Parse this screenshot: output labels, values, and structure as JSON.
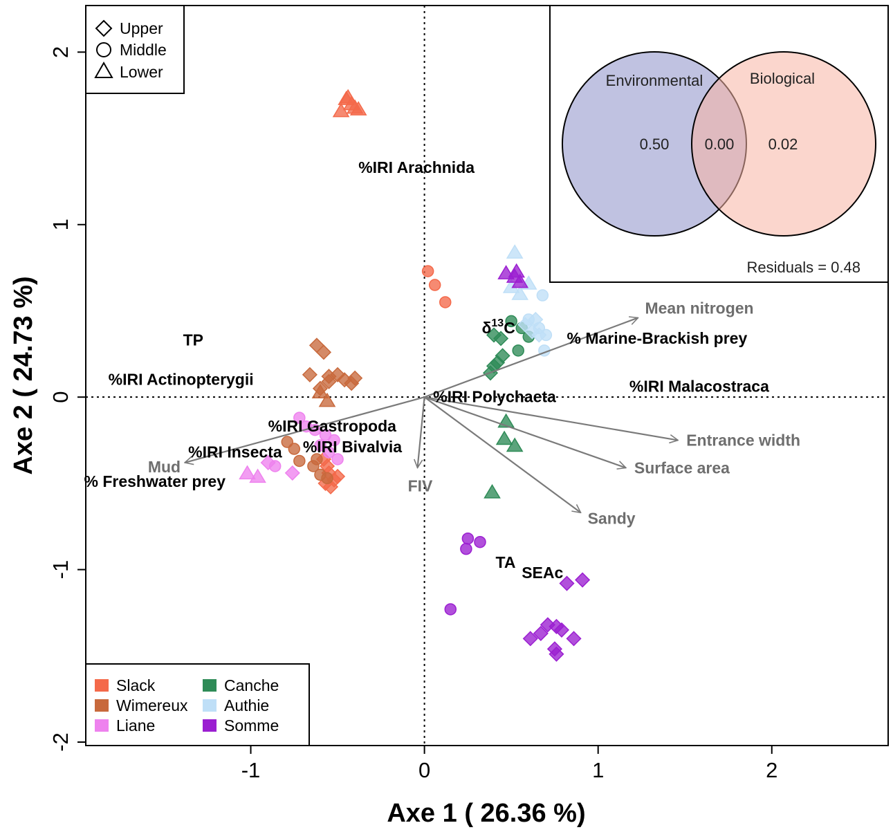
{
  "colors": {
    "Slack": "#f4694a",
    "Wimereux": "#c8693c",
    "Liane": "#ee82ee",
    "Canche": "#2e8b57",
    "Authie": "#bfdff7",
    "Somme": "#9b1fd1",
    "arrow": "#7a7a7a",
    "venn_left": "#8c8fc8",
    "venn_right": "#f8b4a4"
  },
  "chart_data": {
    "type": "scatter",
    "xlabel": "Axe 1 ( 26.36 %)",
    "ylabel": "Axe 2 ( 24.73 %)",
    "xlim": [
      -1.95,
      2.67
    ],
    "ylim": [
      -2.02,
      2.27
    ],
    "xticks": [
      -1,
      0,
      1,
      2
    ],
    "yticks": [
      -2,
      -1,
      0,
      1,
      2
    ],
    "ref_lines": {
      "x": 0,
      "y": 0,
      "style": "dotted"
    },
    "shape_legend": [
      {
        "label": "Upper",
        "shape": "diamond"
      },
      {
        "label": "Middle",
        "shape": "circle"
      },
      {
        "label": "Lower",
        "shape": "triangle"
      }
    ],
    "site_legend": [
      "Slack",
      "Wimereux",
      "Liane",
      "Canche",
      "Authie",
      "Somme"
    ],
    "series": [
      {
        "name": "Slack",
        "points": [
          [
            -0.45,
            1.73,
            "triangle"
          ],
          [
            -0.42,
            1.7,
            "triangle"
          ],
          [
            -0.4,
            1.68,
            "triangle"
          ],
          [
            -0.48,
            1.66,
            "triangle"
          ],
          [
            -0.44,
            1.74,
            "triangle"
          ],
          [
            -0.38,
            1.67,
            "triangle"
          ],
          [
            0.02,
            0.73,
            "circle"
          ],
          [
            0.06,
            0.65,
            "circle"
          ],
          [
            0.12,
            0.55,
            "circle"
          ],
          [
            -0.58,
            -0.36,
            "diamond"
          ],
          [
            -0.55,
            -0.44,
            "diamond"
          ],
          [
            -0.52,
            -0.48,
            "diamond"
          ],
          [
            -0.57,
            -0.5,
            "diamond"
          ],
          [
            -0.54,
            -0.52,
            "diamond"
          ],
          [
            -0.5,
            -0.46,
            "diamond"
          ],
          [
            -0.56,
            -0.4,
            "diamond"
          ]
        ]
      },
      {
        "name": "Wimereux",
        "points": [
          [
            -0.62,
            0.3,
            "diamond"
          ],
          [
            -0.58,
            0.26,
            "diamond"
          ],
          [
            -0.66,
            0.13,
            "diamond"
          ],
          [
            -0.55,
            0.12,
            "diamond"
          ],
          [
            -0.5,
            0.13,
            "diamond"
          ],
          [
            -0.46,
            0.1,
            "diamond"
          ],
          [
            -0.42,
            0.08,
            "diamond"
          ],
          [
            -0.6,
            0.05,
            "diamond"
          ],
          [
            -0.55,
            0.09,
            "diamond"
          ],
          [
            -0.4,
            0.11,
            "diamond"
          ],
          [
            -0.6,
            0.03,
            "triangle"
          ],
          [
            -0.56,
            -0.02,
            "triangle"
          ],
          [
            -0.79,
            -0.26,
            "circle"
          ],
          [
            -0.75,
            -0.3,
            "circle"
          ],
          [
            -0.72,
            -0.37,
            "circle"
          ],
          [
            -0.64,
            -0.4,
            "circle"
          ],
          [
            -0.6,
            -0.45,
            "circle"
          ],
          [
            -0.56,
            -0.47,
            "circle"
          ],
          [
            -0.62,
            -0.36,
            "circle"
          ]
        ]
      },
      {
        "name": "Liane",
        "points": [
          [
            -0.72,
            -0.12,
            "circle"
          ],
          [
            -0.68,
            -0.17,
            "circle"
          ],
          [
            -0.63,
            -0.19,
            "circle"
          ],
          [
            -0.57,
            -0.22,
            "circle"
          ],
          [
            -0.52,
            -0.25,
            "circle"
          ],
          [
            -0.55,
            -0.32,
            "circle"
          ],
          [
            -0.5,
            -0.36,
            "circle"
          ],
          [
            -0.6,
            -0.28,
            "circle"
          ],
          [
            -1.02,
            -0.44,
            "triangle"
          ],
          [
            -0.96,
            -0.46,
            "triangle"
          ],
          [
            -0.9,
            -0.38,
            "diamond"
          ],
          [
            -0.76,
            -0.44,
            "diamond"
          ],
          [
            -0.86,
            -0.4,
            "circle"
          ]
        ]
      },
      {
        "name": "Canche",
        "points": [
          [
            0.5,
            0.44,
            "circle"
          ],
          [
            0.56,
            0.4,
            "circle"
          ],
          [
            0.6,
            0.35,
            "circle"
          ],
          [
            0.54,
            0.27,
            "circle"
          ],
          [
            0.4,
            0.36,
            "diamond"
          ],
          [
            0.44,
            0.34,
            "diamond"
          ],
          [
            0.45,
            0.24,
            "diamond"
          ],
          [
            0.42,
            0.2,
            "diamond"
          ],
          [
            0.4,
            0.18,
            "diamond"
          ],
          [
            0.38,
            0.14,
            "diamond"
          ],
          [
            0.47,
            -0.14,
            "triangle"
          ],
          [
            0.46,
            -0.24,
            "triangle"
          ],
          [
            0.52,
            -0.28,
            "triangle"
          ],
          [
            0.39,
            -0.55,
            "triangle"
          ]
        ]
      },
      {
        "name": "Authie",
        "points": [
          [
            0.52,
            0.84,
            "triangle"
          ],
          [
            0.6,
            0.66,
            "triangle"
          ],
          [
            0.55,
            0.6,
            "triangle"
          ],
          [
            0.5,
            0.64,
            "triangle"
          ],
          [
            0.68,
            0.59,
            "circle"
          ],
          [
            0.6,
            0.45,
            "circle"
          ],
          [
            0.66,
            0.4,
            "circle"
          ],
          [
            0.7,
            0.36,
            "circle"
          ],
          [
            0.69,
            0.27,
            "circle"
          ],
          [
            0.64,
            0.45,
            "diamond"
          ],
          [
            0.58,
            0.42,
            "diamond"
          ],
          [
            0.66,
            0.36,
            "diamond"
          ],
          [
            0.62,
            0.38,
            "diamond"
          ]
        ]
      },
      {
        "name": "Somme",
        "points": [
          [
            0.47,
            0.72,
            "triangle"
          ],
          [
            0.52,
            0.7,
            "triangle"
          ],
          [
            0.55,
            0.67,
            "triangle"
          ],
          [
            0.53,
            0.73,
            "triangle"
          ],
          [
            0.25,
            -0.82,
            "circle"
          ],
          [
            0.32,
            -0.84,
            "circle"
          ],
          [
            0.24,
            -0.88,
            "circle"
          ],
          [
            0.15,
            -1.23,
            "circle"
          ],
          [
            0.82,
            -1.08,
            "diamond"
          ],
          [
            0.91,
            -1.06,
            "diamond"
          ],
          [
            0.61,
            -1.4,
            "diamond"
          ],
          [
            0.67,
            -1.37,
            "diamond"
          ],
          [
            0.71,
            -1.32,
            "diamond"
          ],
          [
            0.76,
            -1.33,
            "diamond"
          ],
          [
            0.79,
            -1.35,
            "diamond"
          ],
          [
            0.86,
            -1.4,
            "diamond"
          ],
          [
            0.75,
            -1.46,
            "diamond"
          ],
          [
            0.76,
            -1.49,
            "diamond"
          ]
        ]
      }
    ],
    "response_labels": [
      {
        "text": "%IRI Arachnida",
        "x": -0.38,
        "y": 1.3
      },
      {
        "text": "TP",
        "x": -1.39,
        "y": 0.3
      },
      {
        "text": "%IRI Actinopterygii",
        "x": -1.82,
        "y": 0.07
      },
      {
        "text": "%IRI Gastropoda",
        "x": -0.9,
        "y": -0.2
      },
      {
        "text": "%IRI Insecta",
        "x": -1.36,
        "y": -0.35
      },
      {
        "text": "%IRI Bivalvia",
        "x": -0.7,
        "y": -0.32
      },
      {
        "text": "% Freshwater prey",
        "x": -1.96,
        "y": -0.52
      },
      {
        "text": "%IRI Polychaeta",
        "x": 0.05,
        "y": -0.03
      },
      {
        "text": "% Marine-Brackish prey",
        "x": 0.82,
        "y": 0.31
      },
      {
        "text": "%IRI Malacostraca",
        "x": 1.18,
        "y": 0.03
      },
      {
        "text": "TA",
        "x": 0.41,
        "y": -0.99
      },
      {
        "text": "SEAc",
        "x": 0.56,
        "y": -1.05
      }
    ],
    "delta_label": {
      "symbol": "δ",
      "superscript": "13",
      "letter": "C",
      "x": 0.33,
      "y": 0.37
    },
    "env_vectors": [
      {
        "label": "Mean nitrogen",
        "x": 1.23,
        "y": 0.46
      },
      {
        "label": "Entrance width",
        "x": 1.46,
        "y": -0.25
      },
      {
        "label": "Surface area",
        "x": 1.16,
        "y": -0.41
      },
      {
        "label": "Sandy",
        "x": 0.9,
        "y": -0.67
      },
      {
        "label": "Mud",
        "x": -1.38,
        "y": -0.38
      },
      {
        "label": "FIV",
        "x": -0.04,
        "y": -0.41
      }
    ],
    "venn": {
      "sets": [
        "Environmental",
        "Biological"
      ],
      "values": [
        "0.50",
        "0.00",
        "0.02"
      ],
      "residuals": "Residuals = 0.48"
    }
  }
}
